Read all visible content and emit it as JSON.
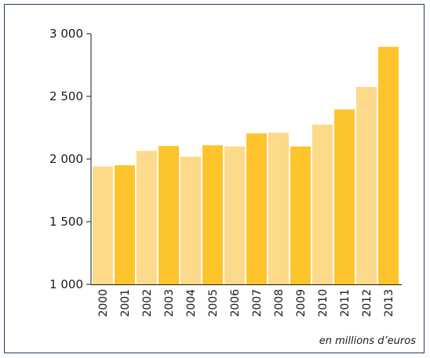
{
  "chart_data": {
    "type": "bar",
    "categories": [
      "2000",
      "2001",
      "2002",
      "2003",
      "2004",
      "2005",
      "2006",
      "2007",
      "2008",
      "2009",
      "2010",
      "2011",
      "2012",
      "2013"
    ],
    "values": [
      1940,
      1950,
      2065,
      2105,
      2020,
      2110,
      2100,
      2205,
      2210,
      2100,
      2275,
      2395,
      2575,
      2895
    ],
    "ylim": [
      1000,
      3000
    ],
    "yticks": [
      1000,
      1500,
      2000,
      2500,
      3000
    ],
    "ytick_labels": [
      "1 000",
      "1 500",
      "2 000",
      "2 500",
      "3 000"
    ],
    "unit_note": "en millions d’euros",
    "colors": {
      "light": "#fdd98a",
      "dark": "#fdc42b",
      "axis": "#1a1a1a",
      "frame": "#1f3d68"
    },
    "grid": false,
    "legend": "none"
  }
}
